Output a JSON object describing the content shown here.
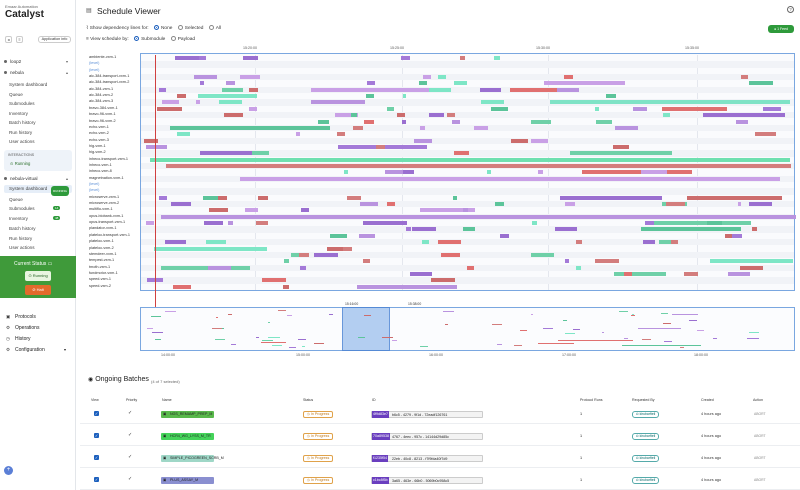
{
  "sidebar": {
    "subtitle": "Emaar Automation",
    "title": "Catalyst",
    "app_info_label": "Application info",
    "loop2_label": "loop2",
    "nebula_label": "nebula",
    "nebula_items": [
      "System dashboard",
      "Queue",
      "Submodules",
      "Inventory",
      "Batch history",
      "Run history",
      "User actions"
    ],
    "interactions_label": "INTERACTIONS",
    "interactions_value": "Running",
    "nebula_virtual_label": "nebula-virtual",
    "nv_items": [
      "System dashboard",
      "Queue",
      "Submodules",
      "Inventory",
      "Batch history",
      "Run history",
      "User actions"
    ],
    "nv_dashboard_badge": "RUNNING",
    "nv_submodules_badge": "14",
    "nv_inventory_badge": "48",
    "current_status_label": "Current Status",
    "running_label": "Running",
    "halt_label": "Halt",
    "nav": [
      "Protocols",
      "Operations",
      "History",
      "Configuration"
    ],
    "add_label": "+"
  },
  "header": {
    "title": "Schedule Viewer",
    "help": "?",
    "dependency_label": "Show dependency lines for:",
    "dependency_options": [
      "None",
      "Selected",
      "All"
    ],
    "dependency_selected": "None",
    "view_label": "View schedule by:",
    "view_options": [
      "Submodule",
      "Payload"
    ],
    "view_selected": "Submodule",
    "live_label": "● 1 Feed"
  },
  "timeline": {
    "top_ticks": [
      "15:20:00",
      "15:25:00",
      "15:30:00",
      "15:35:00"
    ],
    "rows": [
      "ambiente-vxm-1",
      "(level)",
      "(level)",
      "aic-384-transport-vxm-1",
      "aic-384-transport-vxm-2",
      "aic-384-vxm-1",
      "aic-384-vxm-2",
      "aic-384-vxm-3",
      "bravo-384-vxm-1",
      "bravo-96-vxm-1",
      "bravo-96-vxm-2",
      "echo-vxm-1",
      "echo-vxm-2",
      "echo-vxm-3",
      "hig-vxm-1",
      "hig-vxm-2",
      "inheco-transport-vxm-1",
      "inheco-vxm-1",
      "inheco-vxm-8",
      "magnetnation-vxm-1",
      "(level)",
      "(level)",
      "microserve-vxm-1",
      "microserve-vxm-2",
      "multiflo-vxm-1",
      "opus-biobank-vxm-1",
      "opus-transport-vxm-1",
      "plandator-vxm-1",
      "plateloc-transport-vxm-1",
      "plateloc-vxm-1",
      "plateloc-vxm-2",
      "stemdeer-vxm-1",
      "tempest-vxm-1",
      "tmoth-vxm-1",
      "fundmotor-vxm-1",
      "speed-vxm-1",
      "speed-vxm-2"
    ],
    "mini_ticks": [
      "15:16:00",
      "15:38:00"
    ],
    "bottom_ticks": [
      "14:00:00",
      "15:00:00",
      "16:00:00",
      "17:00:00",
      "18:00:00"
    ]
  },
  "batches": {
    "title": "Ongoing Batches",
    "subtitle": "(4 of 7 selected)",
    "headers": [
      "View",
      "Priority",
      "Name",
      "Status",
      "ID",
      "Protocol Runs",
      "Requested By",
      "Created",
      "Action"
    ],
    "rows": [
      {
        "name": "NGS_REMAMP_PREP_M",
        "name_color": "#59b94b",
        "status": "In Progress",
        "id_prefix": "4f9d83e7",
        "id": "b6c5 - 4279 - 9f1d - 72eadf126761",
        "runs": "1",
        "requester": "kirubarftell",
        "created": "4 hours ago",
        "action": "ABORT"
      },
      {
        "name": "HCR4_WG_LYSS_M_TR",
        "name_color": "#44d35a",
        "status": "In Progress",
        "id_prefix": "70a89538",
        "id": "4767 - 4eec - 957c - 14144d29d85c",
        "runs": "1",
        "requester": "kirubarftell",
        "created": "4 hours ago",
        "action": "ABORT"
      },
      {
        "name": "SIMPLE_PICOGREEN_SCRB_M",
        "name_color": "#9fd7c7",
        "status": "In Progress",
        "id_prefix": "f1235f54",
        "id": "22eb - 40c8 - 8213 - f7f9fda40f7d9",
        "runs": "1",
        "requester": "kirubarftell",
        "created": "4 hours ago",
        "action": "ABORT"
      },
      {
        "name": "PLUS_ASSAY_M",
        "name_color": "#8a8fd0",
        "status": "In Progress",
        "id_prefix": "c1bc8f5b",
        "id": "3a65 - 463e - 66b0 - 5069b0c958c5",
        "runs": "1",
        "requester": "kirubarftell",
        "created": "4 hours ago",
        "action": "ABORT"
      }
    ]
  }
}
